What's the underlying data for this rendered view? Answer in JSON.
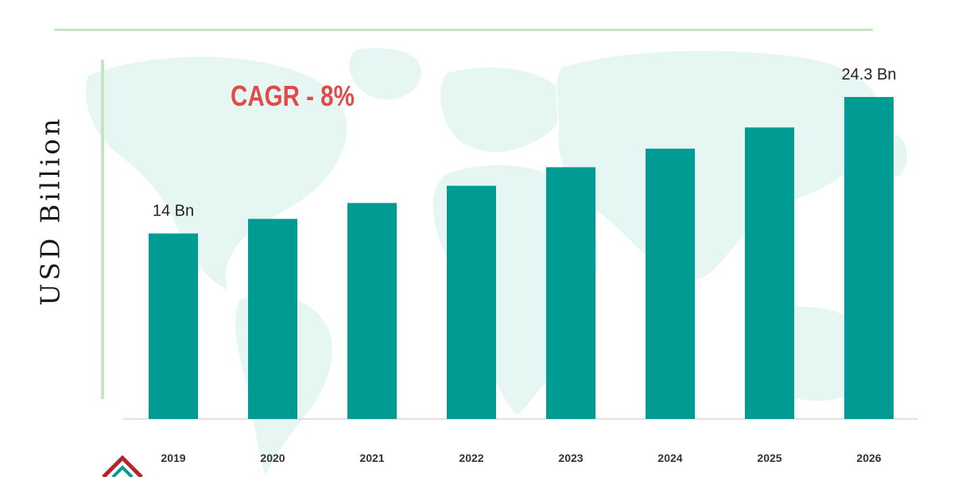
{
  "chart_data": {
    "type": "bar",
    "title": "",
    "xlabel": "",
    "ylabel": "USD Billion",
    "categories": [
      "2019",
      "2020",
      "2021",
      "2022",
      "2023",
      "2024",
      "2025",
      "2026"
    ],
    "values": [
      14,
      15.1,
      16.3,
      17.6,
      19.0,
      20.4,
      22.0,
      24.3
    ],
    "data_labels": [
      "14 Bn",
      "",
      "",
      "",
      "",
      "",
      "",
      "24.3 Bn"
    ],
    "annotation": "CAGR - 8%",
    "ylim": [
      0,
      24.3
    ],
    "grid": false,
    "legend": "none",
    "colors": {
      "bar": "#009b93",
      "annotation": "#e24a4a",
      "rule": "#c6e5c3",
      "map": "#e6f6f2",
      "axis": "#d9d9d9"
    }
  }
}
